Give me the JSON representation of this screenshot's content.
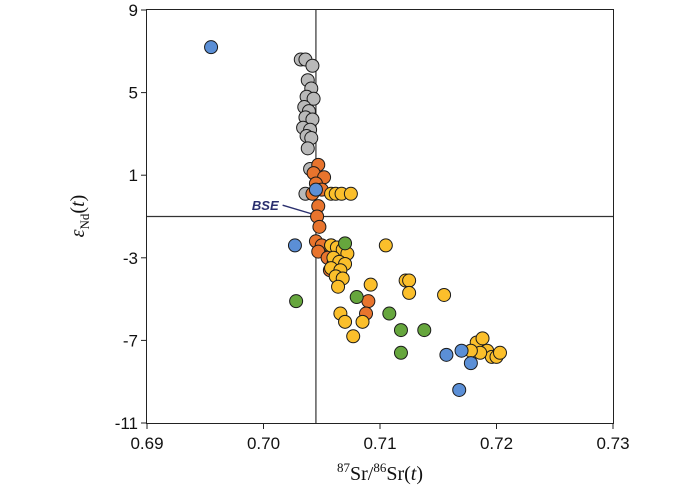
{
  "chart_data": {
    "type": "scatter",
    "title": "",
    "xlabel": {
      "sup1": "87",
      "text1": "Sr/",
      "sup2": "86",
      "text2": "Sr(",
      "var": "t",
      "text3": ")"
    },
    "ylabel": {
      "epsilon": "ε",
      "sub": "Nd",
      "open": "(",
      "var": "t",
      "close": ")"
    },
    "xlim": [
      0.69,
      0.73
    ],
    "ylim": [
      -11,
      9
    ],
    "x_ticks": [
      "0.69",
      "0.70",
      "0.71",
      "0.72",
      "0.73"
    ],
    "y_ticks": [
      "9",
      "5",
      "1",
      "-3",
      "-7",
      "-11"
    ],
    "x_tick_values": [
      0.69,
      0.7,
      0.71,
      0.72,
      0.73
    ],
    "y_tick_values": [
      9,
      5,
      1,
      -3,
      -7,
      -11
    ],
    "reference_lines": {
      "x": 0.7045,
      "y": -1.0
    },
    "annotation": {
      "text": "BSE",
      "point": [
        0.7045,
        -1.0
      ],
      "label_at": [
        0.7025,
        -0.45
      ]
    },
    "grid": false,
    "series": [
      {
        "color": "#b9b9b9",
        "points": [
          [
            0.7032,
            6.6
          ],
          [
            0.7036,
            6.6
          ],
          [
            0.7042,
            6.3
          ],
          [
            0.7038,
            5.6
          ],
          [
            0.7041,
            5.2
          ],
          [
            0.7037,
            4.8
          ],
          [
            0.7043,
            4.7
          ],
          [
            0.7035,
            4.3
          ],
          [
            0.7039,
            4.1
          ],
          [
            0.7036,
            3.8
          ],
          [
            0.7042,
            3.7
          ],
          [
            0.7034,
            3.3
          ],
          [
            0.704,
            3.2
          ],
          [
            0.7037,
            2.9
          ],
          [
            0.7041,
            2.8
          ],
          [
            0.7038,
            2.3
          ],
          [
            0.704,
            1.3
          ],
          [
            0.7036,
            0.1
          ]
        ]
      },
      {
        "color": "#e8742d",
        "points": [
          [
            0.7047,
            1.5
          ],
          [
            0.7043,
            1.1
          ],
          [
            0.7052,
            0.9
          ],
          [
            0.7045,
            0.6
          ],
          [
            0.705,
            0.3
          ],
          [
            0.7042,
            0.1
          ],
          [
            0.7047,
            -0.5
          ],
          [
            0.7046,
            -1.0
          ],
          [
            0.7048,
            -1.5
          ],
          [
            0.7045,
            -2.2
          ],
          [
            0.705,
            -2.4
          ],
          [
            0.7047,
            -2.7
          ],
          [
            0.7058,
            -2.4
          ],
          [
            0.7055,
            -3.0
          ],
          [
            0.706,
            -3.3
          ],
          [
            0.7057,
            -3.6
          ],
          [
            0.7067,
            -4.0
          ],
          [
            0.709,
            -5.1
          ],
          [
            0.7088,
            -5.7
          ]
        ]
      },
      {
        "color": "#fbbf2b",
        "points": [
          [
            0.7058,
            0.1
          ],
          [
            0.7062,
            0.1
          ],
          [
            0.7067,
            0.1
          ],
          [
            0.7075,
            0.1
          ],
          [
            0.7058,
            -2.4
          ],
          [
            0.7063,
            -2.5
          ],
          [
            0.7068,
            -2.6
          ],
          [
            0.7072,
            -2.8
          ],
          [
            0.706,
            -3.0
          ],
          [
            0.7065,
            -3.2
          ],
          [
            0.707,
            -3.3
          ],
          [
            0.7058,
            -3.5
          ],
          [
            0.7066,
            -3.6
          ],
          [
            0.7062,
            -3.9
          ],
          [
            0.7068,
            -4.0
          ],
          [
            0.7064,
            -4.4
          ],
          [
            0.7066,
            -5.7
          ],
          [
            0.707,
            -6.1
          ],
          [
            0.7077,
            -6.8
          ],
          [
            0.7085,
            -6.1
          ],
          [
            0.7092,
            -4.3
          ],
          [
            0.7105,
            -2.4
          ],
          [
            0.7122,
            -4.1
          ],
          [
            0.7125,
            -4.1
          ],
          [
            0.7125,
            -4.7
          ],
          [
            0.7155,
            -4.8
          ],
          [
            0.7183,
            -7.1
          ],
          [
            0.7188,
            -6.9
          ],
          [
            0.7192,
            -7.5
          ],
          [
            0.7196,
            -7.8
          ],
          [
            0.72,
            -7.8
          ],
          [
            0.7203,
            -7.6
          ],
          [
            0.7186,
            -7.6
          ],
          [
            0.7178,
            -7.5
          ]
        ]
      },
      {
        "color": "#66a63d",
        "points": [
          [
            0.7028,
            -5.1
          ],
          [
            0.707,
            -2.3
          ],
          [
            0.708,
            -4.9
          ],
          [
            0.7108,
            -5.7
          ],
          [
            0.7118,
            -6.5
          ],
          [
            0.7138,
            -6.5
          ],
          [
            0.7118,
            -7.6
          ]
        ]
      },
      {
        "color": "#5b8fd6",
        "points": [
          [
            0.6955,
            7.2
          ],
          [
            0.7045,
            0.3
          ],
          [
            0.7027,
            -2.4
          ],
          [
            0.7157,
            -7.7
          ],
          [
            0.717,
            -7.5
          ],
          [
            0.7178,
            -8.1
          ],
          [
            0.7168,
            -9.4
          ]
        ]
      }
    ]
  }
}
